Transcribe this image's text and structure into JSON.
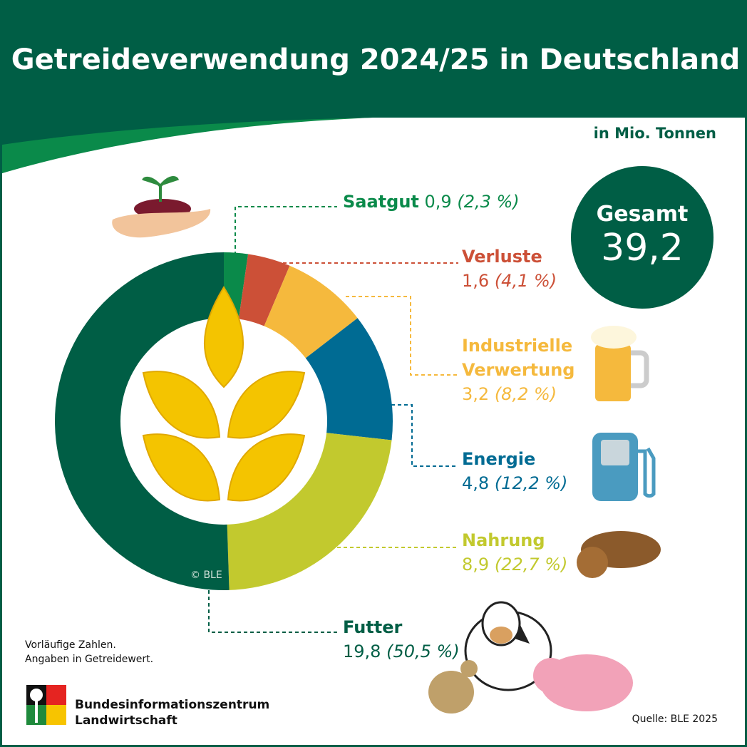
{
  "title": "Getreideverwendung 2024/25 in Deutschland",
  "unit": "in Mio. Tonnen",
  "total": {
    "label": "Gesamt",
    "value": "39,2"
  },
  "notes": [
    "Vorläufige Zahlen.",
    "Angaben in Getreidewert."
  ],
  "organization": [
    "Bundesinformationszentrum",
    "Landwirtschaft"
  ],
  "source": "Quelle: BLE 2025",
  "copyright": "© BLE",
  "colors": {
    "brand": "#005e45",
    "saatgut": "#0a8a4a",
    "verluste": "#cc5037",
    "industrie": "#f5b93d",
    "energie": "#006b93",
    "nahrung": "#c2c92e",
    "futter": "#005e45"
  },
  "chart_data": {
    "type": "pie",
    "donut": true,
    "categories": [
      "Saatgut",
      "Verluste",
      "Industrielle Verwertung",
      "Energie",
      "Nahrung",
      "Futter"
    ],
    "values": [
      0.9,
      1.6,
      3.2,
      4.8,
      8.9,
      19.8
    ],
    "value_labels": [
      "0,9",
      "1,6",
      "3,2",
      "4,8",
      "8,9",
      "19,8"
    ],
    "percent_labels": [
      "(2,3 %)",
      "(4,1 %)",
      "(8,2 %)",
      "(12,2 %)",
      "(22,7 %)",
      "(50,5 %)"
    ],
    "percents": [
      2.3,
      4.1,
      8.2,
      12.2,
      22.7,
      50.5
    ],
    "colors": [
      "#0a8a4a",
      "#cc5037",
      "#f5b93d",
      "#006b93",
      "#c2c92e",
      "#005e45"
    ]
  },
  "labels": {
    "saatgut": {
      "name": "Saatgut",
      "value": "0,9",
      "pct": "(2,3 %)"
    },
    "verluste": {
      "name": "Verluste",
      "value": "1,6",
      "pct": "(4,1 %)"
    },
    "industrie": {
      "name1": "Industrielle",
      "name2": "Verwertung",
      "value": "3,2",
      "pct": "(8,2 %)"
    },
    "energie": {
      "name": "Energie",
      "value": "4,8",
      "pct": "(12,2 %)"
    },
    "nahrung": {
      "name": "Nahrung",
      "value": "8,9",
      "pct": "(22,7 %)"
    },
    "futter": {
      "name": "Futter",
      "value": "19,8",
      "pct": "(50,5 %)"
    }
  },
  "icons": [
    "seedling-hand-icon",
    "beer-mug-icon",
    "fuel-pump-icon",
    "bread-icon",
    "farm-animals-icon",
    "wheat-icon",
    "ble-logo-icon"
  ]
}
